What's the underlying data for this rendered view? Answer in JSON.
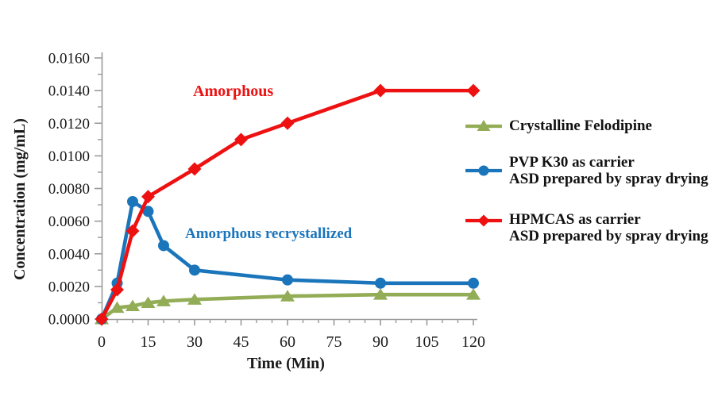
{
  "chart_data": {
    "type": "line",
    "title": "",
    "xlabel": "Time (Min)",
    "ylabel": "Concentration (mg/mL)",
    "xlim": [
      0,
      120
    ],
    "ylim": [
      0,
      0.016
    ],
    "x_major_ticks": [
      0,
      15,
      30,
      45,
      60,
      75,
      90,
      105,
      120
    ],
    "x_minor_step": 5,
    "y_major_step": 0.002,
    "y_minor_step": 0.001,
    "y_tick_labels": [
      "0.0000",
      "0.0020",
      "0.0040",
      "0.0060",
      "0.0080",
      "0.0100",
      "0.0120",
      "0.0140",
      "0.0160"
    ],
    "grid": false,
    "legend_position": "right",
    "axis_color": "#9a9a9a",
    "text_color": "#1a1a1a",
    "series": [
      {
        "name": "Crystalline Felodipine",
        "marker": "triangle",
        "color": "#92ad56",
        "x": [
          0,
          5,
          10,
          15,
          20,
          30,
          60,
          90,
          120
        ],
        "y": [
          0,
          0.0007,
          0.0008,
          0.001,
          0.0011,
          0.0012,
          0.0014,
          0.0015,
          0.0015
        ]
      },
      {
        "name": "PVP K30 as carrier ASD prepared by spray drying",
        "marker": "circle",
        "color": "#1b75bb",
        "x": [
          0,
          5,
          10,
          15,
          20,
          30,
          60,
          90,
          120
        ],
        "y": [
          0,
          0.0022,
          0.0072,
          0.0066,
          0.0045,
          0.003,
          0.0024,
          0.0022,
          0.0022
        ]
      },
      {
        "name": "HPMCAS as carrier ASD prepared by spray drying",
        "marker": "diamond",
        "color": "#ee1111",
        "x": [
          0,
          5,
          10,
          15,
          30,
          45,
          60,
          90,
          120
        ],
        "y": [
          0,
          0.0018,
          0.0054,
          0.0075,
          0.0092,
          0.011,
          0.012,
          0.014,
          0.014
        ]
      }
    ],
    "annotations": [
      {
        "text": "Amorphous",
        "color": "#ee1111"
      },
      {
        "text": "Amorphous recrystallized",
        "color": "#1b75bb"
      }
    ]
  },
  "legend": {
    "items": [
      {
        "marker": "triangle",
        "color": "#92ad56",
        "lines": [
          "Crystalline Felodipine"
        ]
      },
      {
        "marker": "circle",
        "color": "#1b75bb",
        "lines": [
          "PVP K30 as carrier",
          "ASD prepared by spray drying"
        ]
      },
      {
        "marker": "diamond",
        "color": "#ee1111",
        "lines": [
          "HPMCAS as carrier",
          "ASD prepared by spray drying"
        ]
      }
    ]
  }
}
